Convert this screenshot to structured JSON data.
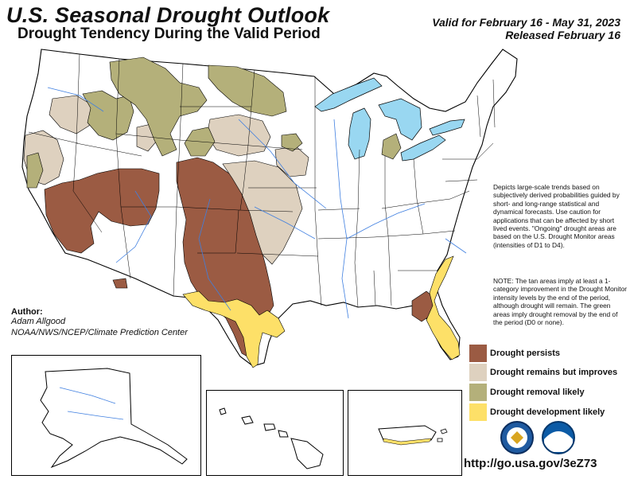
{
  "header": {
    "title": "U.S. Seasonal Drought Outlook",
    "subtitle": "Drought Tendency During the Valid Period",
    "valid": "Valid for February 16 - May 31, 2023",
    "released": "Released February 16"
  },
  "description": "Depicts large-scale trends based on subjectively derived probabilities guided by short- and long-range statistical and dynamical forecasts. Use caution for applications that can be affected by short lived events. \"Ongoing\" drought areas are based on the U.S. Drought Monitor areas (intensities of D1 to D4).",
  "note": "NOTE: The tan areas imply at least a 1-category improvement in the Drought Monitor intensity levels by the end of the period, although drought will remain. The green areas imply drought removal by the end of the period (D0 or none).",
  "legend": [
    {
      "label": "Drought persists",
      "color": "#9b5b43"
    },
    {
      "label": "Drought remains but improves",
      "color": "#ded1bf"
    },
    {
      "label": "Drought removal likely",
      "color": "#b4b07a"
    },
    {
      "label": "Drought development likely",
      "color": "#fde068"
    }
  ],
  "author": {
    "label": "Author:",
    "name": "Adam Allgood",
    "org": "NOAA/NWS/NCEP/Climate Prediction Center"
  },
  "url": "http://go.usa.gov/3eZ73",
  "colors": {
    "water": "#99d7f1",
    "rivers": "#3f7fe0",
    "borders": "#000000"
  },
  "icons": [
    "doc-seal-icon",
    "noaa-logo-icon"
  ]
}
